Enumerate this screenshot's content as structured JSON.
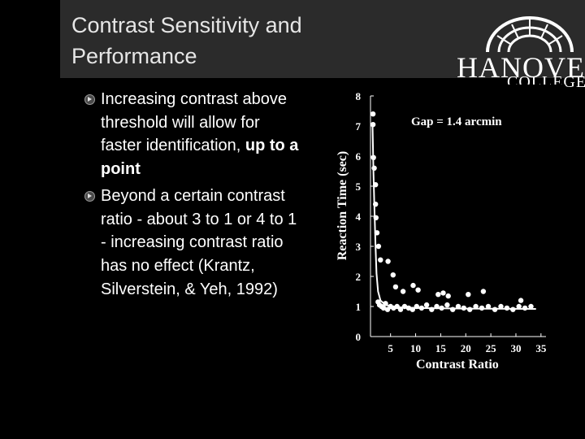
{
  "slide": {
    "title_line1": "Contrast Sensitivity and",
    "title_line2": "Performance"
  },
  "logo": {
    "word": "HANOVER",
    "sub": "COLLEGE"
  },
  "bullets": [
    {
      "text_plain": "Increasing contrast above threshold will allow for faster identification, ",
      "text_bold": "up to a point"
    },
    {
      "text_plain": "Beyond a certain contrast ratio - about 3 to 1 or 4 to 1 - increasing contrast ratio has no effect (Krantz, Silverstein, & Yeh, 1992)"
    }
  ],
  "chart_data": {
    "type": "scatter",
    "annotation": "Gap = 1.4 arcmin",
    "xlabel": "Contrast Ratio",
    "ylabel": "Reaction Time (sec)",
    "xlim": [
      1,
      36
    ],
    "ylim": [
      0,
      8
    ],
    "x_ticks": [
      5,
      10,
      15,
      20,
      25,
      30,
      35
    ],
    "y_ticks": [
      0,
      1,
      2,
      3,
      4,
      5,
      6,
      7,
      8
    ],
    "points": [
      {
        "x": 1.5,
        "y": 7.4
      },
      {
        "x": 1.5,
        "y": 7.05
      },
      {
        "x": 1.6,
        "y": 5.95
      },
      {
        "x": 1.75,
        "y": 5.6
      },
      {
        "x": 2.0,
        "y": 5.05
      },
      {
        "x": 2.0,
        "y": 4.4
      },
      {
        "x": 2.1,
        "y": 3.95
      },
      {
        "x": 2.3,
        "y": 3.45
      },
      {
        "x": 2.6,
        "y": 3.0
      },
      {
        "x": 3.0,
        "y": 2.55
      },
      {
        "x": 4.5,
        "y": 2.5
      },
      {
        "x": 5.5,
        "y": 2.05
      },
      {
        "x": 6.0,
        "y": 1.65
      },
      {
        "x": 7.5,
        "y": 1.5
      },
      {
        "x": 9.5,
        "y": 1.7
      },
      {
        "x": 10.5,
        "y": 1.55
      },
      {
        "x": 14.5,
        "y": 1.4
      },
      {
        "x": 15.5,
        "y": 1.45
      },
      {
        "x": 16.5,
        "y": 1.35
      },
      {
        "x": 20.5,
        "y": 1.4
      },
      {
        "x": 23.5,
        "y": 1.5
      },
      {
        "x": 31.0,
        "y": 1.2
      },
      {
        "x": 2.5,
        "y": 1.15
      },
      {
        "x": 2.8,
        "y": 1.05
      },
      {
        "x": 3.2,
        "y": 1.0
      },
      {
        "x": 3.6,
        "y": 0.95
      },
      {
        "x": 4.0,
        "y": 1.1
      },
      {
        "x": 4.4,
        "y": 0.9
      },
      {
        "x": 5.0,
        "y": 1.0
      },
      {
        "x": 5.6,
        "y": 0.95
      },
      {
        "x": 6.3,
        "y": 1.0
      },
      {
        "x": 7.0,
        "y": 0.9
      },
      {
        "x": 7.8,
        "y": 1.0
      },
      {
        "x": 8.6,
        "y": 0.95
      },
      {
        "x": 9.4,
        "y": 0.9
      },
      {
        "x": 10.2,
        "y": 1.0
      },
      {
        "x": 11.2,
        "y": 0.95
      },
      {
        "x": 12.2,
        "y": 1.05
      },
      {
        "x": 13.2,
        "y": 0.9
      },
      {
        "x": 14.2,
        "y": 1.0
      },
      {
        "x": 15.2,
        "y": 0.95
      },
      {
        "x": 16.3,
        "y": 1.05
      },
      {
        "x": 17.4,
        "y": 0.9
      },
      {
        "x": 18.5,
        "y": 1.0
      },
      {
        "x": 19.6,
        "y": 0.95
      },
      {
        "x": 20.8,
        "y": 0.9
      },
      {
        "x": 22.0,
        "y": 1.0
      },
      {
        "x": 23.2,
        "y": 0.95
      },
      {
        "x": 24.5,
        "y": 1.0
      },
      {
        "x": 25.8,
        "y": 0.9
      },
      {
        "x": 27.0,
        "y": 1.0
      },
      {
        "x": 28.2,
        "y": 0.95
      },
      {
        "x": 29.4,
        "y": 0.9
      },
      {
        "x": 30.6,
        "y": 1.0
      },
      {
        "x": 31.8,
        "y": 0.95
      },
      {
        "x": 33.0,
        "y": 1.0
      }
    ],
    "fit_curve": [
      {
        "x": 1.4,
        "y": 7.0
      },
      {
        "x": 1.6,
        "y": 5.4
      },
      {
        "x": 1.8,
        "y": 4.2
      },
      {
        "x": 2.0,
        "y": 3.0
      },
      {
        "x": 2.2,
        "y": 2.1
      },
      {
        "x": 2.5,
        "y": 1.5
      },
      {
        "x": 3.0,
        "y": 1.2
      },
      {
        "x": 4.0,
        "y": 1.05
      },
      {
        "x": 6.0,
        "y": 0.98
      },
      {
        "x": 10.0,
        "y": 0.95
      },
      {
        "x": 20.0,
        "y": 0.93
      },
      {
        "x": 34.0,
        "y": 0.92
      }
    ]
  },
  "colors": {
    "background": "#000000",
    "title_band": "#2b2b2b",
    "text": "#ffffff",
    "markers": "#ffffff"
  }
}
